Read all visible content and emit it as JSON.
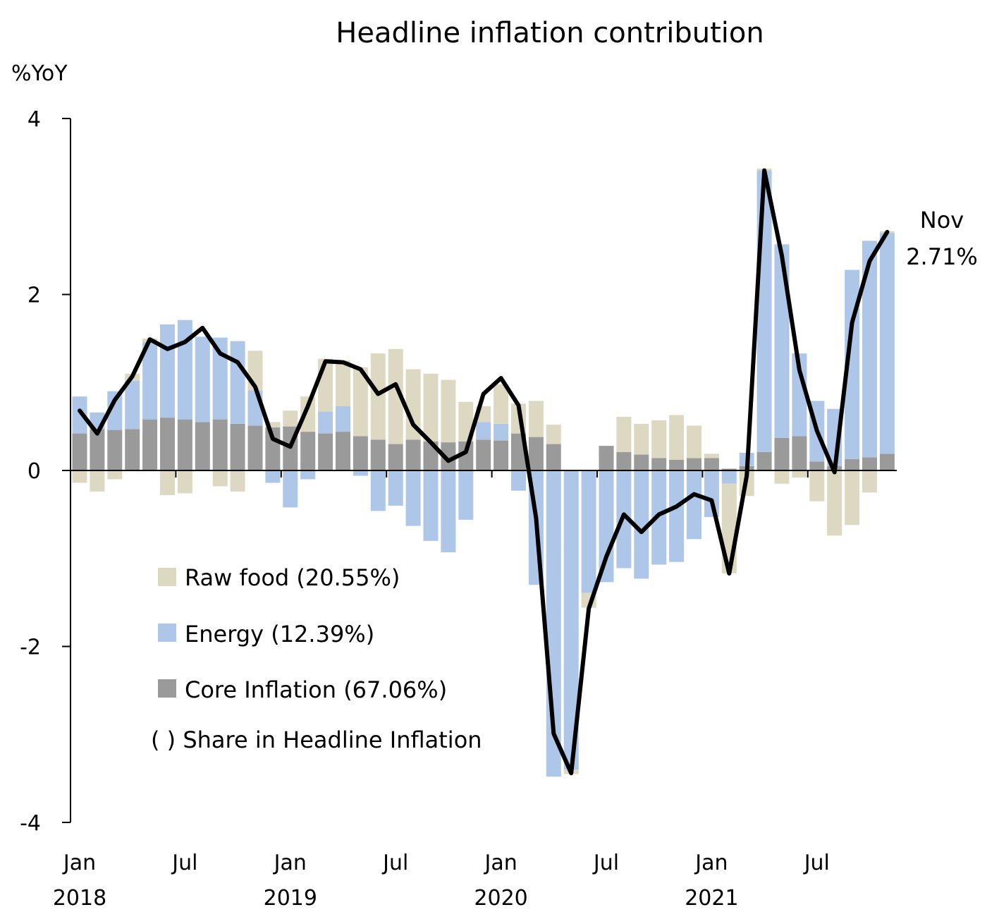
{
  "chart_data": {
    "type": "bar",
    "title": "Headline inflation contribution",
    "ylabel": "%YoY",
    "ylim": [
      -4,
      4
    ],
    "yticks": [
      4,
      2,
      0,
      -2,
      -4
    ],
    "ytick_labels": [
      "4",
      "2",
      "0",
      "-2",
      "-4"
    ],
    "months": [
      "2018-01",
      "2018-02",
      "2018-03",
      "2018-04",
      "2018-05",
      "2018-06",
      "2018-07",
      "2018-08",
      "2018-09",
      "2018-10",
      "2018-11",
      "2018-12",
      "2019-01",
      "2019-02",
      "2019-03",
      "2019-04",
      "2019-05",
      "2019-06",
      "2019-07",
      "2019-08",
      "2019-09",
      "2019-10",
      "2019-11",
      "2019-12",
      "2020-01",
      "2020-02",
      "2020-03",
      "2020-04",
      "2020-05",
      "2020-06",
      "2020-07",
      "2020-08",
      "2020-09",
      "2020-10",
      "2020-11",
      "2020-12",
      "2021-01",
      "2021-02",
      "2021-03",
      "2021-04",
      "2021-05",
      "2021-06",
      "2021-07",
      "2021-08",
      "2021-09",
      "2021-10",
      "2021-11"
    ],
    "x_tick_labels": [
      {
        "month": "Jan",
        "year": "2018",
        "index": 0
      },
      {
        "month": "Jul",
        "year": "",
        "index": 6
      },
      {
        "month": "Jan",
        "year": "2019",
        "index": 12
      },
      {
        "month": "Jul",
        "year": "",
        "index": 18
      },
      {
        "month": "Jan",
        "year": "2020",
        "index": 24
      },
      {
        "month": "Jul",
        "year": "",
        "index": 30
      },
      {
        "month": "Jan",
        "year": "2021",
        "index": 36
      },
      {
        "month": "Jul",
        "year": "",
        "index": 42
      }
    ],
    "series": [
      {
        "name": "Core Inflation (67.06%)",
        "kind": "bar",
        "color": "#9a9a9a",
        "values": [
          0.42,
          0.47,
          0.46,
          0.47,
          0.58,
          0.6,
          0.58,
          0.55,
          0.58,
          0.53,
          0.51,
          0.49,
          0.5,
          0.44,
          0.42,
          0.44,
          0.39,
          0.35,
          0.3,
          0.35,
          0.33,
          0.32,
          0.33,
          0.35,
          0.34,
          0.42,
          0.38,
          0.3,
          0.0,
          0.0,
          0.28,
          0.21,
          0.18,
          0.14,
          0.12,
          0.14,
          0.14,
          0.02,
          0.05,
          0.21,
          0.37,
          0.39,
          0.1,
          0.05,
          0.13,
          0.15,
          0.19
        ]
      },
      {
        "name": "Energy (12.39%)",
        "kind": "bar",
        "color": "#aec6e8",
        "values": [
          0.42,
          0.19,
          0.44,
          0.55,
          0.88,
          1.06,
          1.13,
          0.97,
          0.93,
          0.94,
          0.4,
          -0.14,
          -0.42,
          -0.1,
          0.25,
          0.29,
          -0.06,
          -0.46,
          -0.4,
          -0.63,
          -0.8,
          -0.93,
          -0.56,
          0.2,
          0.19,
          -0.23,
          -1.3,
          -3.48,
          -3.4,
          -1.39,
          -1.27,
          -1.11,
          -1.23,
          -1.07,
          -1.04,
          -0.78,
          -0.53,
          -0.15,
          0.15,
          3.2,
          2.2,
          0.94,
          0.69,
          0.65,
          2.15,
          2.46,
          2.51
        ]
      },
      {
        "name": "Raw food (20.55%)",
        "kind": "bar",
        "color": "#ddd8c2",
        "values": [
          -0.14,
          -0.24,
          -0.1,
          0.08,
          0.04,
          -0.28,
          -0.26,
          0.0,
          -0.18,
          -0.24,
          0.45,
          0.06,
          0.18,
          0.4,
          0.6,
          0.52,
          0.78,
          0.98,
          1.08,
          0.8,
          0.77,
          0.71,
          0.45,
          0.18,
          0.45,
          0.34,
          0.41,
          0.22,
          -0.05,
          -0.17,
          0.0,
          0.4,
          0.35,
          0.43,
          0.51,
          0.37,
          0.05,
          -1.02,
          -0.29,
          0.02,
          -0.15,
          -0.08,
          -0.35,
          -0.74,
          -0.62,
          -0.25,
          0.02
        ]
      },
      {
        "name": "Headline inflation",
        "kind": "line",
        "color": "#000000",
        "values": [
          0.68,
          0.42,
          0.8,
          1.07,
          1.49,
          1.38,
          1.46,
          1.62,
          1.33,
          1.23,
          0.95,
          0.36,
          0.27,
          0.73,
          1.24,
          1.23,
          1.15,
          0.87,
          0.98,
          0.52,
          0.32,
          0.11,
          0.21,
          0.87,
          1.05,
          0.74,
          -0.54,
          -2.99,
          -3.44,
          -1.57,
          -0.98,
          -0.5,
          -0.7,
          -0.5,
          -0.41,
          -0.27,
          -0.34,
          -1.17,
          -0.06,
          3.41,
          2.44,
          1.14,
          0.45,
          -0.02,
          1.68,
          2.38,
          2.71
        ]
      }
    ],
    "legend": {
      "placement": "lower-left",
      "items": [
        "Raw food (20.55%)",
        "Energy (12.39%)",
        "Core Inflation (67.06%)"
      ],
      "note": "( ) Share in Headline Inflation"
    },
    "annotation": {
      "line1": "Nov",
      "line2": "2.71%"
    },
    "grid": false
  }
}
